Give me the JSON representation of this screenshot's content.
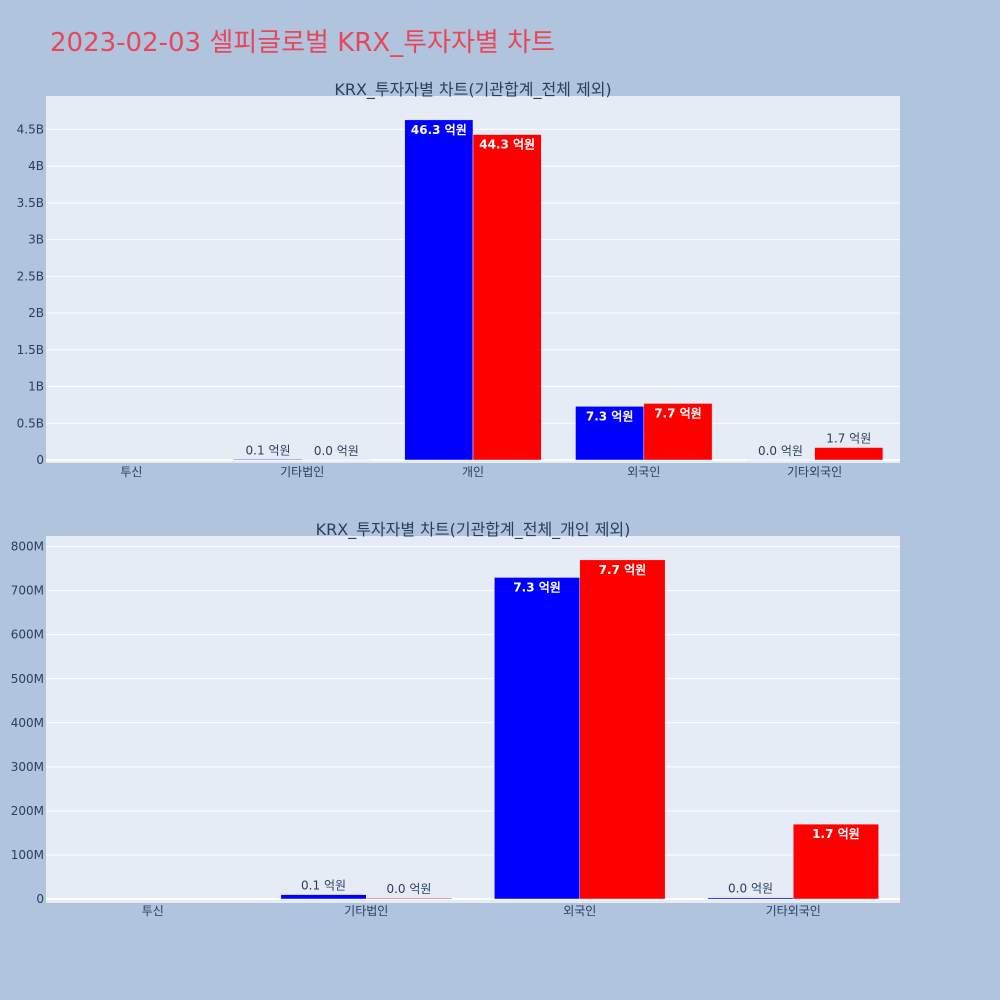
{
  "page": {
    "title": "2023-02-03 셀피글로벌 KRX_투자자별 차트"
  },
  "colors": {
    "buy": "#0000ff",
    "sell": "#ff0000",
    "plot_bg": "#e5ecf6",
    "page_bg": "#b0c4de",
    "title": "#e8475a"
  },
  "chart_data": [
    {
      "type": "bar",
      "title": "KRX_투자자별 차트(기관합계_전체 제외)",
      "categories": [
        "투신",
        "기타법인",
        "개인",
        "외국인",
        "기타외국인"
      ],
      "ylim": [
        0,
        4900000000
      ],
      "yticks": [
        0,
        500000000,
        1000000000,
        1500000000,
        2000000000,
        2500000000,
        3000000000,
        3500000000,
        4000000000,
        4500000000
      ],
      "ytick_labels": [
        "0",
        "0.5B",
        "1B",
        "1.5B",
        "2B",
        "2.5B",
        "3B",
        "3.5B",
        "4B",
        "4.5B"
      ],
      "grid": true,
      "legend": "none",
      "series": [
        {
          "color": "#0000ff",
          "values": [
            0,
            10000000,
            4630000000,
            730000000,
            3000000
          ],
          "labels": [
            "",
            "0.1 억원",
            "46.3 억원",
            "7.3 억원",
            "0.0 억원"
          ]
        },
        {
          "color": "#ff0000",
          "values": [
            0,
            2000000,
            4430000000,
            770000000,
            170000000
          ],
          "labels": [
            "",
            "0.0 억원",
            "44.3 억원",
            "7.7 억원",
            "1.7 억원"
          ]
        }
      ]
    },
    {
      "type": "bar",
      "title": "KRX_투자자별 차트(기관합계_전체_개인 제외)",
      "categories": [
        "투신",
        "기타법인",
        "외국인",
        "기타외국인"
      ],
      "ylim": [
        0,
        815000000
      ],
      "yticks": [
        0,
        100000000,
        200000000,
        300000000,
        400000000,
        500000000,
        600000000,
        700000000,
        800000000
      ],
      "ytick_labels": [
        "0",
        "100M",
        "200M",
        "300M",
        "400M",
        "500M",
        "600M",
        "700M",
        "800M"
      ],
      "grid": true,
      "legend": "none",
      "series": [
        {
          "color": "#0000ff",
          "values": [
            0,
            10000000,
            730000000,
            3000000
          ],
          "labels": [
            "",
            "0.1 억원",
            "7.3 억원",
            "0.0 억원"
          ]
        },
        {
          "color": "#ff0000",
          "values": [
            0,
            2000000,
            770000000,
            170000000
          ],
          "labels": [
            "",
            "0.0 억원",
            "7.7 억원",
            "1.7 억원"
          ]
        }
      ]
    }
  ]
}
